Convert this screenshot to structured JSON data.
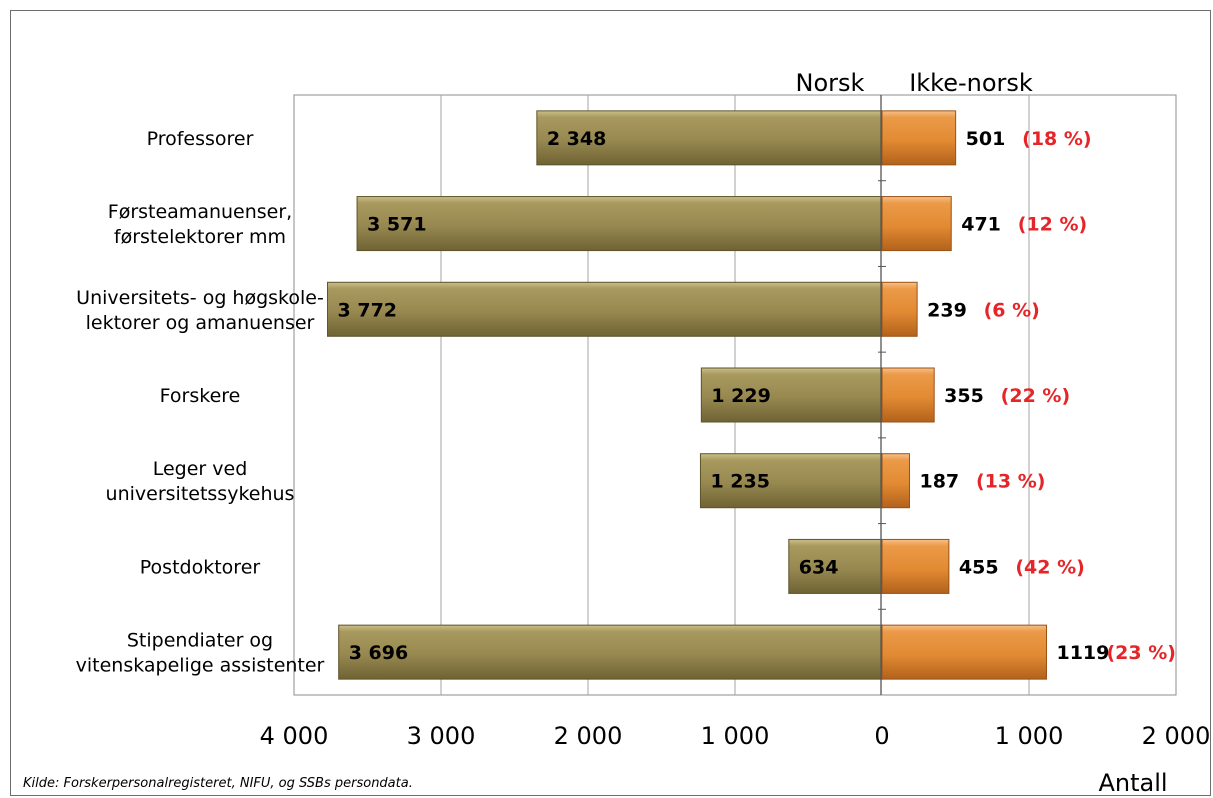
{
  "chart_data": {
    "type": "bar",
    "orientation": "horizontal-diverging",
    "headers": {
      "left": "Norsk",
      "right": "Ikke-norsk"
    },
    "categories": [
      [
        "Professorer"
      ],
      [
        "Førsteamanuenser,",
        "førstelektorer mm"
      ],
      [
        "Universitets- og høgskole-",
        "lektorer og amanuenser"
      ],
      [
        "Forskere"
      ],
      [
        "Leger ved",
        "universitetssykehus"
      ],
      [
        "Postdoktorer"
      ],
      [
        "Stipendiater og",
        "vitenskapelige assistenter"
      ]
    ],
    "series": [
      {
        "name": "Norsk",
        "values": [
          2348,
          3571,
          3772,
          1229,
          1235,
          634,
          3696
        ],
        "labels": [
          "2 348",
          "3 571",
          "3 772",
          "1 229",
          "1 235",
          "634",
          "3 696"
        ]
      },
      {
        "name": "Ikke-norsk",
        "values": [
          501,
          471,
          239,
          355,
          187,
          455,
          1119
        ],
        "labels": [
          "501",
          "471",
          "239",
          "355",
          "187",
          "455",
          "1119"
        ],
        "share_labels": [
          "(18 %)",
          "(12 %)",
          "(6 %)",
          "(22 %)",
          "(13 %)",
          "(42 %)",
          "(23 %)"
        ]
      }
    ],
    "xlim": [
      -4000,
      2000
    ],
    "xticks": [
      -4000,
      -3000,
      -2000,
      -1000,
      0,
      1000,
      2000
    ],
    "xtick_labels": [
      "4 000",
      "3 000",
      "2 000",
      "1 000",
      "0",
      "1 000",
      "2 000"
    ],
    "xlabel": "Antall",
    "grid": true,
    "colors": {
      "norsk": "#9c8e55",
      "ikke_norsk": "#e8913a",
      "share": "#e52528",
      "grid": "#a6a6a6"
    }
  },
  "source_note": "Kilde: Forskerpersonalregisteret, NIFU, og SSBs persondata."
}
